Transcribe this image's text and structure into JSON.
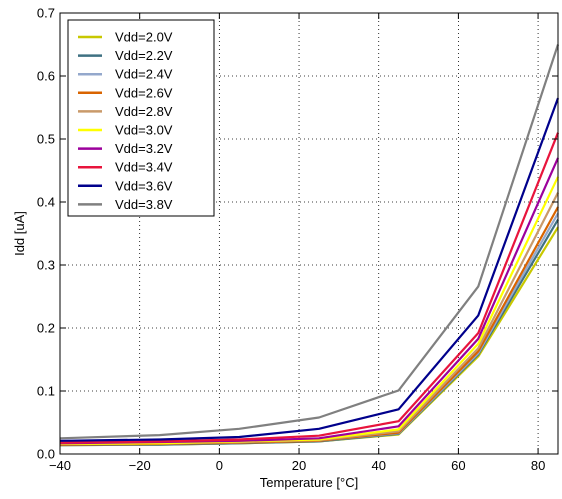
{
  "chart_data": {
    "type": "line",
    "title": "",
    "xlabel": "Temperature [°C]",
    "ylabel": "Idd [uA]",
    "xlim": [
      -40,
      85
    ],
    "ylim": [
      0,
      0.7
    ],
    "xticks": [
      -40,
      -20,
      0,
      20,
      40,
      60,
      80
    ],
    "yticks": [
      0,
      0.1,
      0.2,
      0.3,
      0.4,
      0.5,
      0.6,
      0.7
    ],
    "xtick_labels": [
      "−40",
      "−20",
      "0",
      "20",
      "40",
      "60",
      "80"
    ],
    "ytick_labels": [
      "0.0",
      "0.1",
      "0.2",
      "0.3",
      "0.4",
      "0.5",
      "0.6",
      "0.7"
    ],
    "grid": true,
    "legend_position": "top-left",
    "x": [
      -40,
      -15,
      5,
      25,
      45,
      65,
      85
    ],
    "series": [
      {
        "name": "Vdd=2.0V",
        "color": "#c8c800",
        "values": [
          0.014,
          0.015,
          0.017,
          0.02,
          0.031,
          0.155,
          0.36
        ]
      },
      {
        "name": "Vdd=2.2V",
        "color": "#3f7182",
        "values": [
          0.014,
          0.015,
          0.017,
          0.02,
          0.032,
          0.158,
          0.372
        ]
      },
      {
        "name": "Vdd=2.4V",
        "color": "#94a8cc",
        "values": [
          0.015,
          0.016,
          0.018,
          0.021,
          0.033,
          0.16,
          0.382
        ]
      },
      {
        "name": "Vdd=2.6V",
        "color": "#d96400",
        "values": [
          0.015,
          0.016,
          0.018,
          0.021,
          0.034,
          0.163,
          0.392
        ]
      },
      {
        "name": "Vdd=2.8V",
        "color": "#c99a6a",
        "values": [
          0.016,
          0.017,
          0.019,
          0.022,
          0.036,
          0.168,
          0.415
        ]
      },
      {
        "name": "Vdd=3.0V",
        "color": "#ffff00",
        "values": [
          0.016,
          0.017,
          0.02,
          0.023,
          0.039,
          0.175,
          0.44
        ]
      },
      {
        "name": "Vdd=3.2V",
        "color": "#9c009c",
        "values": [
          0.017,
          0.019,
          0.021,
          0.025,
          0.044,
          0.183,
          0.47
        ]
      },
      {
        "name": "Vdd=3.4V",
        "color": "#e8143c",
        "values": [
          0.018,
          0.02,
          0.023,
          0.029,
          0.052,
          0.192,
          0.51
        ]
      },
      {
        "name": "Vdd=3.6V",
        "color": "#00008c",
        "values": [
          0.021,
          0.023,
          0.027,
          0.04,
          0.071,
          0.22,
          0.565
        ]
      },
      {
        "name": "Vdd=3.8V",
        "color": "#808080",
        "values": [
          0.025,
          0.03,
          0.04,
          0.058,
          0.101,
          0.266,
          0.65
        ]
      }
    ]
  }
}
